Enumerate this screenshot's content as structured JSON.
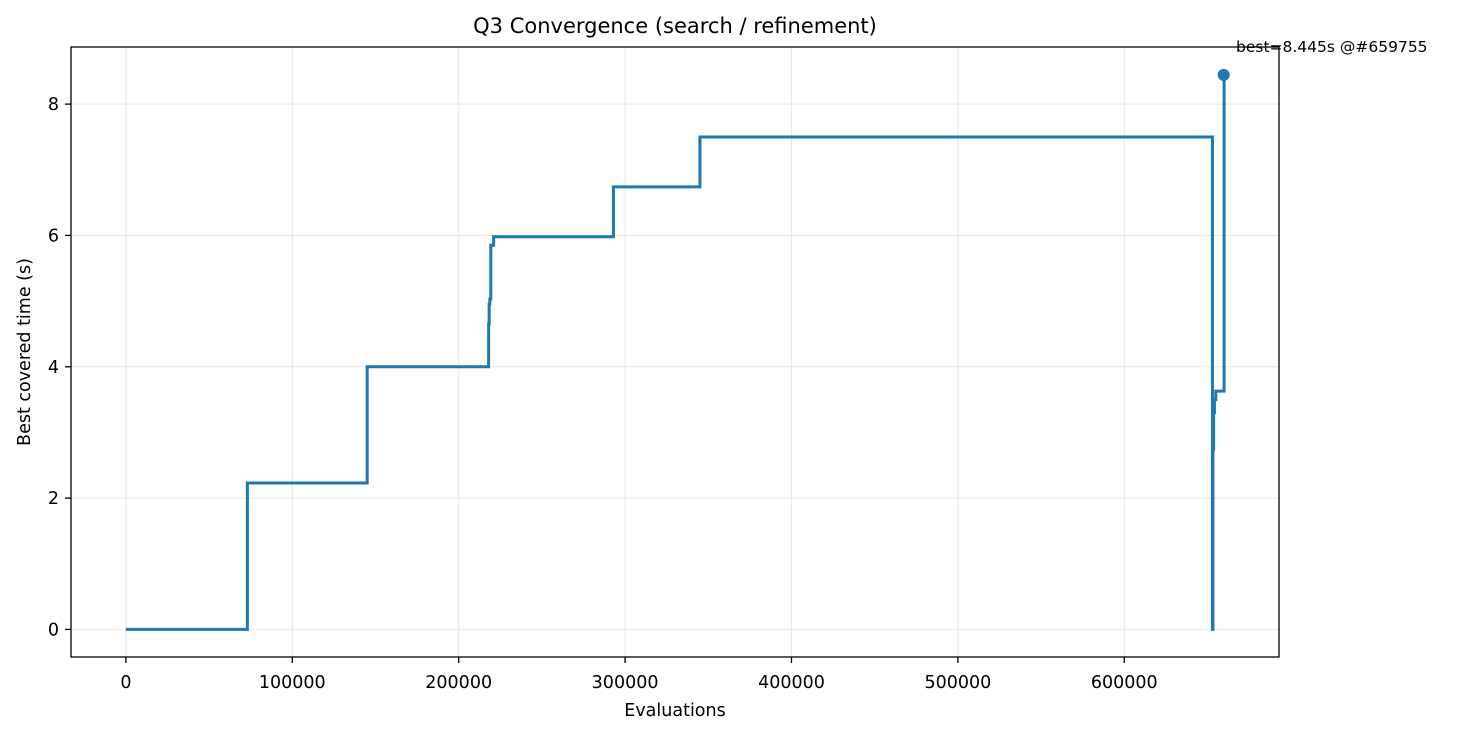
{
  "chart_data": {
    "type": "line",
    "title": "Q3 Convergence (search / refinement)",
    "xlabel": "Evaluations",
    "ylabel": "Best covered time (s)",
    "xlim": [
      -33000,
      693000
    ],
    "ylim": [
      -0.42,
      8.87
    ],
    "xticks": [
      0,
      100000,
      200000,
      300000,
      400000,
      500000,
      600000
    ],
    "yticks": [
      0,
      2,
      4,
      6,
      8
    ],
    "grid": true,
    "line_color": "#1f77b4",
    "series": [
      {
        "step": "post",
        "x": [
          0,
          73000,
          145000,
          218000,
          218300,
          218700,
          219300,
          221000,
          293000,
          345000,
          653000,
          653300,
          653700,
          654200,
          655000,
          660000,
          659755
        ],
        "y": [
          0,
          2.23,
          4.0,
          4.65,
          4.95,
          5.03,
          5.85,
          5.98,
          6.74,
          7.5,
          0,
          2.75,
          3.3,
          3.5,
          3.63,
          8.445,
          8.445
        ]
      }
    ],
    "best_point": {
      "x": 659755,
      "y": 8.445
    },
    "annotation": {
      "text": "best=8.445s @#659755"
    }
  }
}
